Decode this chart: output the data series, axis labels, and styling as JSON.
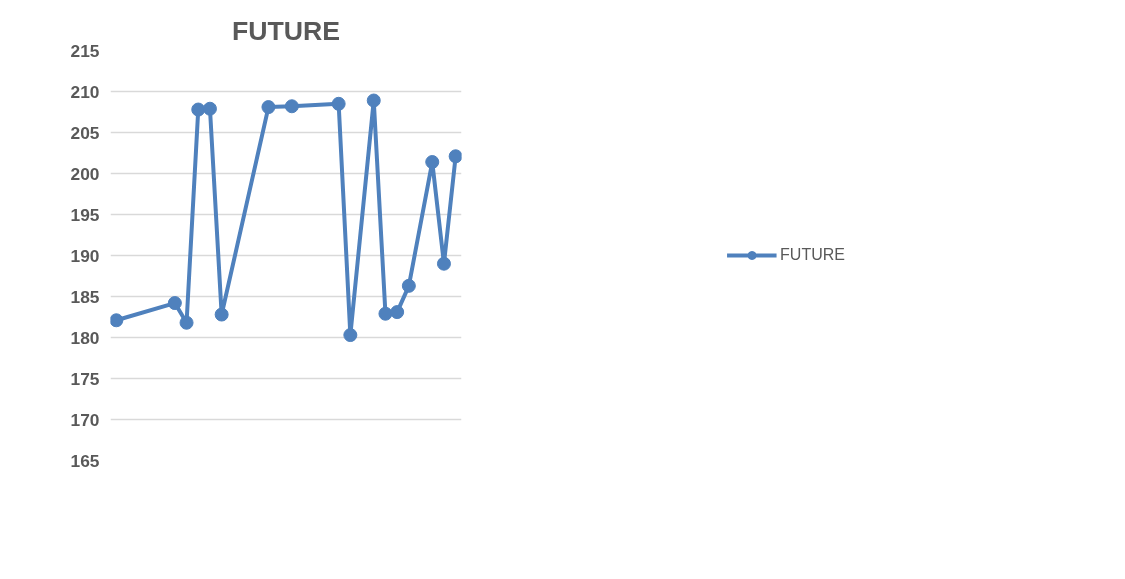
{
  "chart_data": {
    "type": "line",
    "title": "FUTURE",
    "categories": [
      null,
      null,
      null,
      null,
      null,
      null,
      null,
      null,
      null,
      null,
      null,
      null,
      null,
      null,
      null,
      null,
      null,
      null,
      null,
      null,
      null,
      null,
      null,
      null,
      null,
      null,
      null,
      null,
      null,
      null
    ],
    "series": [
      {
        "name": "FUTURE",
        "color": "#4f81bd",
        "values": [
          182.1,
          null,
          null,
          null,
          null,
          184.2,
          181.8,
          207.8,
          207.9,
          182.8,
          null,
          null,
          null,
          208.1,
          null,
          208.2,
          null,
          null,
          null,
          208.5,
          180.3,
          null,
          208.9,
          182.9,
          183.1,
          186.3,
          null,
          201.4,
          189.0,
          202.1
        ]
      }
    ],
    "ylim": [
      165,
      215
    ],
    "yticks": [
      165,
      170,
      175,
      180,
      185,
      190,
      195,
      200,
      205,
      210,
      215
    ],
    "tick_labels": "y",
    "grid": "y",
    "legend": "right",
    "marker": "circle",
    "line_style": "solid"
  }
}
